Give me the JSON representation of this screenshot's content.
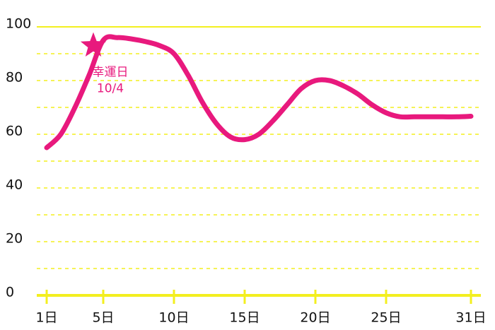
{
  "chart_data": {
    "type": "line",
    "x": [
      1,
      2,
      3,
      4,
      5,
      6,
      7,
      8,
      9,
      10,
      11,
      12,
      13,
      14,
      15,
      16,
      17,
      18,
      19,
      20,
      21,
      22,
      23,
      24,
      25,
      26,
      27,
      28,
      29,
      30,
      31
    ],
    "series": [
      {
        "color": "#e8197d",
        "values": [
          55,
          60,
          70,
          82,
          95,
          96,
          95.5,
          94.5,
          93,
          90,
          82,
          72,
          64,
          59,
          58,
          60,
          65,
          71,
          77,
          80,
          80,
          78,
          75,
          71,
          68,
          66.5,
          66.5,
          66.5,
          66.5,
          66.5,
          66.7
        ]
      }
    ],
    "xlim": [
      1,
      31
    ],
    "xticks": [
      {
        "value": 1,
        "label": "1日"
      },
      {
        "value": 5,
        "label": "5日"
      },
      {
        "value": 10,
        "label": "10日"
      },
      {
        "value": 15,
        "label": "15日"
      },
      {
        "value": 20,
        "label": "20日"
      },
      {
        "value": 25,
        "label": "25日"
      },
      {
        "value": 31,
        "label": "31日"
      }
    ],
    "ylim": [
      0,
      100
    ],
    "yticks": [
      0,
      20,
      40,
      60,
      80,
      100
    ],
    "minor_yticks": [
      10,
      30,
      50,
      70,
      90
    ],
    "grid": true,
    "grid_color": "#f3ef1f",
    "annotation": {
      "lines": [
        "幸運日",
        "10/4"
      ],
      "x": 4.3,
      "y": 93,
      "color": "#e8197d"
    }
  }
}
